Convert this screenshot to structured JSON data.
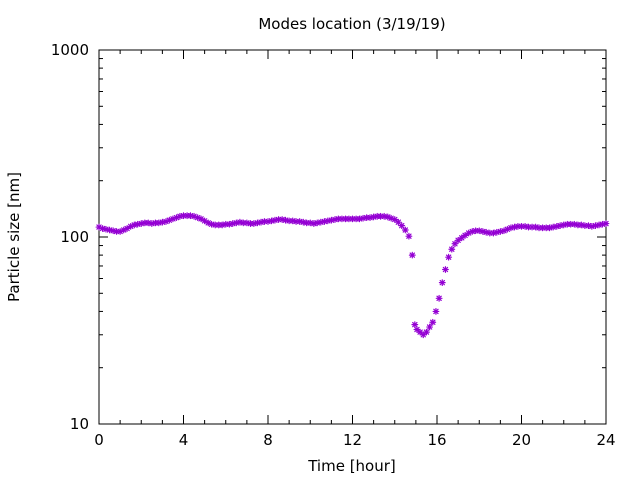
{
  "chart_data": {
    "type": "scatter",
    "title": "Modes location (3/19/19)",
    "xlabel": "Time [hour]",
    "ylabel": "Particle size [nm]",
    "xlim": [
      0,
      24
    ],
    "ylim": [
      10,
      1000
    ],
    "yscale": "log",
    "grid": false,
    "marker_color": "#9400d3",
    "x_ticks": [
      "0",
      "4",
      "8",
      "12",
      "16",
      "20",
      "24"
    ],
    "y_ticks": [
      "10",
      "100",
      "1000"
    ],
    "series": [
      {
        "points": [
          [
            0.0,
            113
          ],
          [
            0.17,
            111
          ],
          [
            0.33,
            110
          ],
          [
            0.5,
            109
          ],
          [
            0.67,
            108
          ],
          [
            0.83,
            107
          ],
          [
            1.0,
            107
          ],
          [
            1.17,
            109
          ],
          [
            1.33,
            111
          ],
          [
            1.5,
            114
          ],
          [
            1.67,
            116
          ],
          [
            1.83,
            117
          ],
          [
            2.0,
            118
          ],
          [
            2.17,
            119
          ],
          [
            2.33,
            119
          ],
          [
            2.5,
            118
          ],
          [
            2.67,
            119
          ],
          [
            2.83,
            119
          ],
          [
            3.0,
            120
          ],
          [
            3.17,
            121
          ],
          [
            3.33,
            123
          ],
          [
            3.5,
            125
          ],
          [
            3.67,
            127
          ],
          [
            3.83,
            129
          ],
          [
            4.0,
            130
          ],
          [
            4.17,
            130
          ],
          [
            4.33,
            130
          ],
          [
            4.5,
            129
          ],
          [
            4.67,
            127
          ],
          [
            4.83,
            125
          ],
          [
            5.0,
            122
          ],
          [
            5.17,
            119
          ],
          [
            5.33,
            117
          ],
          [
            5.5,
            116
          ],
          [
            5.67,
            116
          ],
          [
            5.83,
            116
          ],
          [
            6.0,
            117
          ],
          [
            6.17,
            117
          ],
          [
            6.33,
            118
          ],
          [
            6.5,
            119
          ],
          [
            6.67,
            120
          ],
          [
            6.83,
            119
          ],
          [
            7.0,
            119
          ],
          [
            7.17,
            118
          ],
          [
            7.33,
            118
          ],
          [
            7.5,
            119
          ],
          [
            7.67,
            120
          ],
          [
            7.83,
            121
          ],
          [
            8.0,
            121
          ],
          [
            8.17,
            122
          ],
          [
            8.33,
            123
          ],
          [
            8.5,
            124
          ],
          [
            8.67,
            124
          ],
          [
            8.83,
            123
          ],
          [
            9.0,
            122
          ],
          [
            9.17,
            122
          ],
          [
            9.33,
            121
          ],
          [
            9.5,
            121
          ],
          [
            9.67,
            120
          ],
          [
            9.83,
            119
          ],
          [
            10.0,
            119
          ],
          [
            10.17,
            118
          ],
          [
            10.33,
            119
          ],
          [
            10.5,
            120
          ],
          [
            10.67,
            121
          ],
          [
            10.83,
            122
          ],
          [
            11.0,
            123
          ],
          [
            11.17,
            124
          ],
          [
            11.33,
            125
          ],
          [
            11.5,
            125
          ],
          [
            11.67,
            125
          ],
          [
            11.83,
            125
          ],
          [
            12.0,
            125
          ],
          [
            12.17,
            125
          ],
          [
            12.33,
            125
          ],
          [
            12.5,
            126
          ],
          [
            12.67,
            127
          ],
          [
            12.83,
            127
          ],
          [
            13.0,
            128
          ],
          [
            13.17,
            129
          ],
          [
            13.33,
            129
          ],
          [
            13.5,
            129
          ],
          [
            13.67,
            128
          ],
          [
            13.83,
            126
          ],
          [
            14.0,
            124
          ],
          [
            14.17,
            120
          ],
          [
            14.33,
            115
          ],
          [
            14.5,
            109
          ],
          [
            14.67,
            101
          ],
          [
            14.83,
            80
          ],
          [
            14.95,
            34
          ],
          [
            15.05,
            32
          ],
          [
            15.2,
            31
          ],
          [
            15.35,
            30
          ],
          [
            15.5,
            31
          ],
          [
            15.65,
            33
          ],
          [
            15.8,
            35
          ],
          [
            15.95,
            40
          ],
          [
            16.1,
            47
          ],
          [
            16.25,
            57
          ],
          [
            16.4,
            67
          ],
          [
            16.55,
            78
          ],
          [
            16.7,
            86
          ],
          [
            16.85,
            92
          ],
          [
            17.0,
            96
          ],
          [
            17.17,
            99
          ],
          [
            17.33,
            102
          ],
          [
            17.5,
            105
          ],
          [
            17.67,
            107
          ],
          [
            17.83,
            108
          ],
          [
            18.0,
            108
          ],
          [
            18.17,
            107
          ],
          [
            18.33,
            106
          ],
          [
            18.5,
            105
          ],
          [
            18.67,
            105
          ],
          [
            18.83,
            106
          ],
          [
            19.0,
            107
          ],
          [
            19.17,
            108
          ],
          [
            19.33,
            110
          ],
          [
            19.5,
            112
          ],
          [
            19.67,
            113
          ],
          [
            19.83,
            114
          ],
          [
            20.0,
            114
          ],
          [
            20.17,
            114
          ],
          [
            20.33,
            113
          ],
          [
            20.5,
            113
          ],
          [
            20.67,
            113
          ],
          [
            20.83,
            112
          ],
          [
            21.0,
            112
          ],
          [
            21.17,
            112
          ],
          [
            21.33,
            112
          ],
          [
            21.5,
            113
          ],
          [
            21.67,
            114
          ],
          [
            21.83,
            115
          ],
          [
            22.0,
            116
          ],
          [
            22.17,
            117
          ],
          [
            22.33,
            117
          ],
          [
            22.5,
            117
          ],
          [
            22.67,
            116
          ],
          [
            22.83,
            116
          ],
          [
            23.0,
            115
          ],
          [
            23.17,
            115
          ],
          [
            23.33,
            114
          ],
          [
            23.5,
            115
          ],
          [
            23.67,
            116
          ],
          [
            23.83,
            117
          ],
          [
            24.0,
            118
          ]
        ]
      }
    ]
  }
}
